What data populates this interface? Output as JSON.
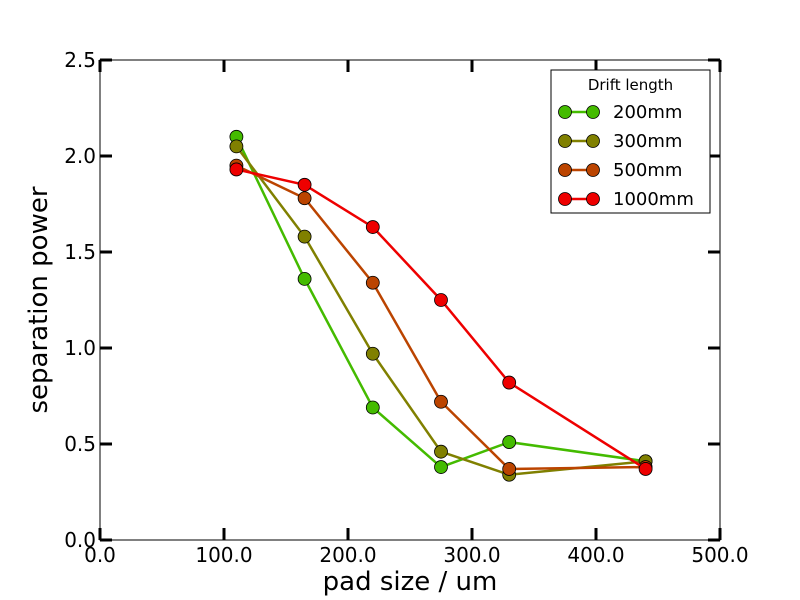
{
  "chart_data": {
    "type": "line",
    "title": "",
    "xlabel": "pad size / um",
    "ylabel": "separation power",
    "xlim": [
      0,
      500
    ],
    "ylim": [
      0,
      2.5
    ],
    "xticks": [
      0,
      100,
      200,
      300,
      400,
      500
    ],
    "xtick_labels": [
      "0.0",
      "100.0",
      "200.0",
      "300.0",
      "400.0",
      "500.0"
    ],
    "yticks": [
      0,
      0.5,
      1.0,
      1.5,
      2.0,
      2.5
    ],
    "ytick_labels": [
      "0.0",
      "0.5",
      "1.0",
      "1.5",
      "2.0",
      "2.5"
    ],
    "grid": false,
    "legend_title": "Drift length",
    "legend_position": "top-right",
    "series": [
      {
        "name": "200mm",
        "color": "#44bb00",
        "x": [
          110,
          165,
          220,
          275,
          330,
          440
        ],
        "y": [
          2.1,
          1.36,
          0.69,
          0.38,
          0.51,
          0.41
        ]
      },
      {
        "name": "300mm",
        "color": "#808000",
        "x": [
          110,
          165,
          220,
          275,
          330,
          440
        ],
        "y": [
          2.05,
          1.58,
          0.97,
          0.46,
          0.34,
          0.41
        ]
      },
      {
        "name": "500mm",
        "color": "#bb4400",
        "x": [
          110,
          165,
          220,
          275,
          330,
          440
        ],
        "y": [
          1.95,
          1.78,
          1.34,
          0.72,
          0.37,
          0.38
        ]
      },
      {
        "name": "1000mm",
        "color": "#ee0000",
        "x": [
          110,
          165,
          220,
          275,
          330,
          440
        ],
        "y": [
          1.93,
          1.85,
          1.63,
          1.25,
          0.82,
          0.37
        ]
      }
    ]
  }
}
